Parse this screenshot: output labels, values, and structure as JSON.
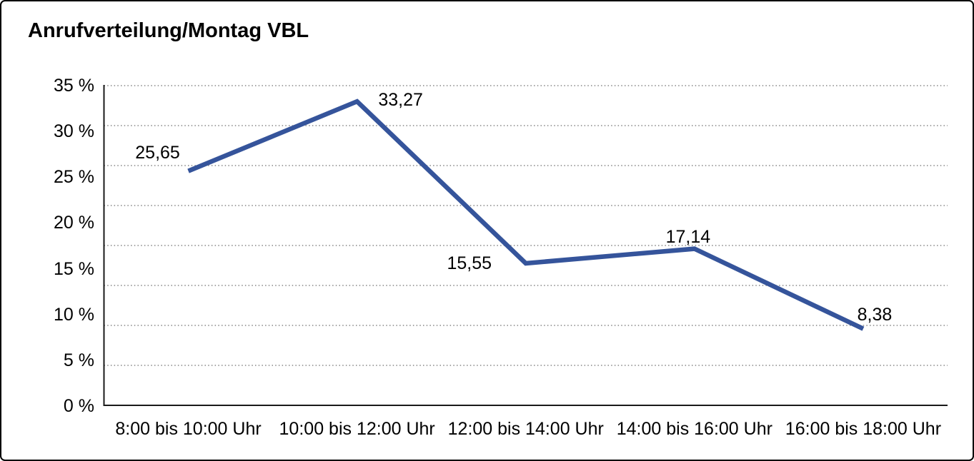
{
  "chart_data": {
    "type": "line",
    "title": "Anrufverteilung/Montag VBL",
    "categories": [
      "8:00 bis 10:00 Uhr",
      "10:00 bis 12:00 Uhr",
      "12:00 bis 14:00 Uhr",
      "14:00 bis 16:00 Uhr",
      "16:00 bis 18:00 Uhr"
    ],
    "values": [
      25.65,
      33.27,
      15.55,
      17.14,
      8.38
    ],
    "point_labels": [
      "25,65",
      "33,27",
      "15,55",
      "17,14",
      "8,38"
    ],
    "y_ticks": [
      "35 %",
      "30 %",
      "25 %",
      "20 %",
      "15 %",
      "10 %",
      "5 %",
      "0 %"
    ],
    "ylim": [
      0,
      35
    ],
    "xlabel": "",
    "ylabel": "",
    "grid": true,
    "gridline_count": 9,
    "grid_style": "dotted",
    "legend": "none",
    "line_color": "#35549B",
    "marker": "none"
  }
}
